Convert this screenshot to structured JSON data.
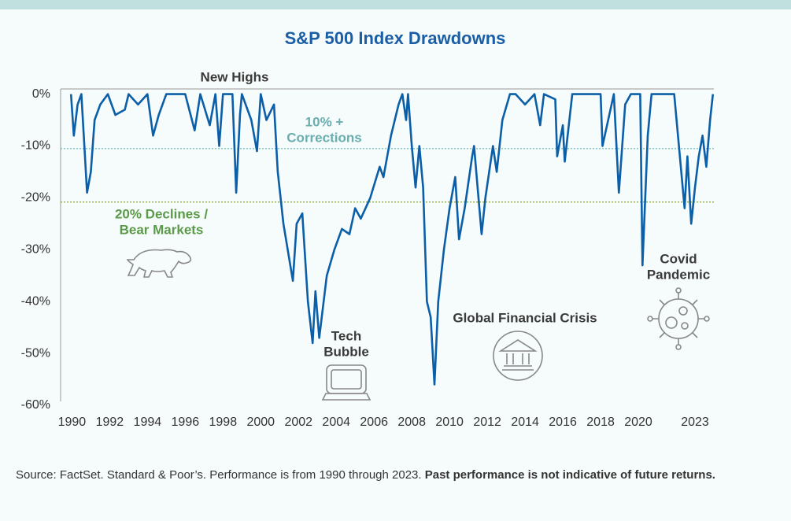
{
  "chart_data": {
    "type": "line",
    "title": "S&P 500 Index Drawdowns",
    "color": "#0b5fa8",
    "x": [
      1989.95,
      1990.1,
      1990.3,
      1990.5,
      1990.8,
      1991.0,
      1991.2,
      1991.5,
      1991.9,
      1992.3,
      1992.8,
      1993.0,
      1993.5,
      1994.0,
      1994.3,
      1994.6,
      1995.0,
      1995.5,
      1996.0,
      1996.5,
      1996.8,
      1997.3,
      1997.6,
      1997.8,
      1998.0,
      1998.5,
      1998.7,
      1998.9,
      1999.0,
      1999.5,
      1999.8,
      2000.0,
      2000.3,
      2000.7,
      2000.9,
      2001.2,
      2001.7,
      2001.9,
      2002.2,
      2002.5,
      2002.75,
      2002.9,
      2003.1,
      2003.5,
      2003.9,
      2004.3,
      2004.7,
      2005.0,
      2005.3,
      2005.8,
      2006.3,
      2006.5,
      2006.9,
      2007.3,
      2007.5,
      2007.7,
      2007.8,
      2008.0,
      2008.2,
      2008.4,
      2008.6,
      2008.8,
      2009.0,
      2009.2,
      2009.4,
      2009.7,
      2010.0,
      2010.3,
      2010.5,
      2010.8,
      2011.2,
      2011.3,
      2011.7,
      2011.9,
      2012.3,
      2012.5,
      2012.8,
      2013.2,
      2013.5,
      2014.0,
      2014.5,
      2014.8,
      2015.0,
      2015.6,
      2015.7,
      2016.0,
      2016.1,
      2016.5,
      2017.0,
      2018.0,
      2018.1,
      2018.7,
      2018.97,
      2019.3,
      2019.6,
      2020.1,
      2020.22,
      2020.5,
      2020.7,
      2021.0,
      2021.9,
      2022.0,
      2022.45,
      2022.6,
      2022.8,
      2023.0,
      2023.2,
      2023.4,
      2023.6,
      2023.8,
      2023.95
    ],
    "values": [
      0,
      -8,
      -2,
      0,
      -19,
      -15,
      -5,
      -2,
      0,
      -4,
      -3,
      0,
      -2,
      0,
      -8,
      -4,
      0,
      0,
      0,
      -7,
      0,
      -6,
      0,
      -10,
      0,
      0,
      -19,
      -4,
      0,
      -5,
      -11,
      0,
      -5,
      -2,
      -15,
      -25,
      -36,
      -25,
      -23,
      -40,
      -48,
      -38,
      -47,
      -35,
      -30,
      -26,
      -27,
      -22,
      -24,
      -20,
      -14,
      -16,
      -8,
      -2,
      0,
      -5,
      0,
      -10,
      -18,
      -10,
      -18,
      -40,
      -43,
      -56,
      -40,
      -30,
      -22,
      -16,
      -28,
      -22,
      -12,
      -10,
      -27,
      -20,
      -10,
      -15,
      -5,
      0,
      0,
      -2,
      0,
      -6,
      0,
      -1,
      -12,
      -6,
      -13,
      0,
      0,
      0,
      -10,
      0,
      -19,
      -2,
      0,
      0,
      -33,
      -8,
      0,
      0,
      0,
      -4,
      -22,
      -12,
      -25,
      -18,
      -12,
      -8,
      -14,
      -5,
      0
    ],
    "xlim": [
      1989.4,
      2024.0
    ],
    "xticks": [
      1990,
      1992,
      1994,
      1996,
      1998,
      2000,
      2002,
      2004,
      2006,
      2008,
      2010,
      2012,
      2014,
      2016,
      2018,
      2020,
      2023
    ],
    "ylim": [
      -60,
      1
    ],
    "yticks": [
      {
        "value": 0,
        "label": "0%"
      },
      {
        "value": -10,
        "label": "-10%"
      },
      {
        "value": -20,
        "label": "-20%"
      },
      {
        "value": -30,
        "label": "-30%"
      },
      {
        "value": -40,
        "label": "-40%"
      },
      {
        "value": -50,
        "label": "-50%"
      },
      {
        "value": -60,
        "label": "-60%"
      }
    ],
    "reference_lines": [
      {
        "value": -10.5,
        "color": "#7cc1c4"
      },
      {
        "value": -20.8,
        "color": "#8fae3c"
      }
    ],
    "annotations": [
      {
        "lines": [
          "New Highs"
        ],
        "color": "#3a3a3a"
      },
      {
        "lines": [
          "10% +",
          "Corrections"
        ],
        "color": "#6aaeb0"
      },
      {
        "lines": [
          "20% Declines /",
          "Bear Markets"
        ],
        "color": "#5b9a48"
      },
      {
        "lines": [
          "Tech",
          "Bubble"
        ],
        "color": "#3a3a3a"
      },
      {
        "lines": [
          "Global Financial Crisis"
        ],
        "color": "#3a3a3a"
      },
      {
        "lines": [
          "Covid",
          "Pandemic"
        ],
        "color": "#3a3a3a"
      }
    ],
    "source": "Source: FactSet. Standard & Poor’s. Performance is from 1990 through 2023.",
    "source_emphasis": "Past performance is not indicative of future returns."
  }
}
